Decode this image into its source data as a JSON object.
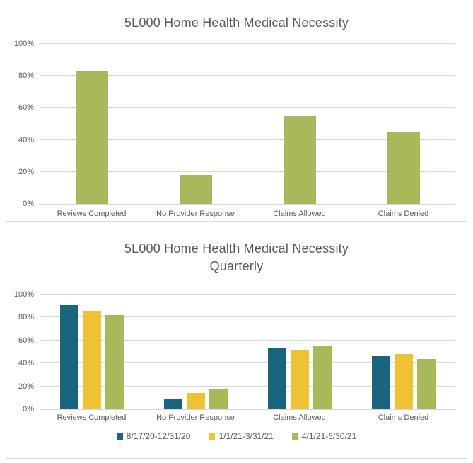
{
  "colors": {
    "text": "#595959",
    "gridline": "#d9d9d9",
    "panel_border": "#d9d9d9",
    "teal": "#19647E",
    "yellow": "#EFC234",
    "green": "#A8B95C"
  },
  "chart_data": [
    {
      "type": "bar",
      "title": "5L000 Home Health Medical Necessity",
      "categories": [
        "Reviews Completed",
        "No Provider Response",
        "Claims Allowed",
        "Claims Denied"
      ],
      "series": [
        {
          "name": "",
          "color": "#A8B95C",
          "values": [
            83,
            18,
            55,
            45
          ]
        }
      ],
      "xlabel": "",
      "ylabel": "",
      "ylim": [
        0,
        100
      ],
      "yticks": [
        0,
        20,
        40,
        60,
        80,
        100
      ],
      "ytick_labels": [
        "0%",
        "20%",
        "40%",
        "60%",
        "80%",
        "100%"
      ],
      "grid": true,
      "legend": "none"
    },
    {
      "type": "bar",
      "title": "5L000 Home Health Medical Necessity",
      "subtitle": "Quarterly",
      "categories": [
        "Reviews Completed",
        "No Provider Response",
        "Claims Allowed",
        "Claims Denied"
      ],
      "series": [
        {
          "name": "8/17/20-12/31/20",
          "color": "#19647E",
          "values": [
            91,
            9,
            54,
            46
          ]
        },
        {
          "name": "1/1/21-3/31/21",
          "color": "#EFC234",
          "values": [
            86,
            14,
            51,
            48
          ]
        },
        {
          "name": "4/1/21-6/30/21",
          "color": "#A8B95C",
          "values": [
            82,
            17,
            55,
            44
          ]
        }
      ],
      "xlabel": "",
      "ylabel": "",
      "ylim": [
        0,
        100
      ],
      "yticks": [
        0,
        20,
        40,
        60,
        80,
        100
      ],
      "ytick_labels": [
        "0%",
        "20%",
        "40%",
        "60%",
        "80%",
        "100%"
      ],
      "grid": true,
      "legend": "bottom"
    }
  ]
}
